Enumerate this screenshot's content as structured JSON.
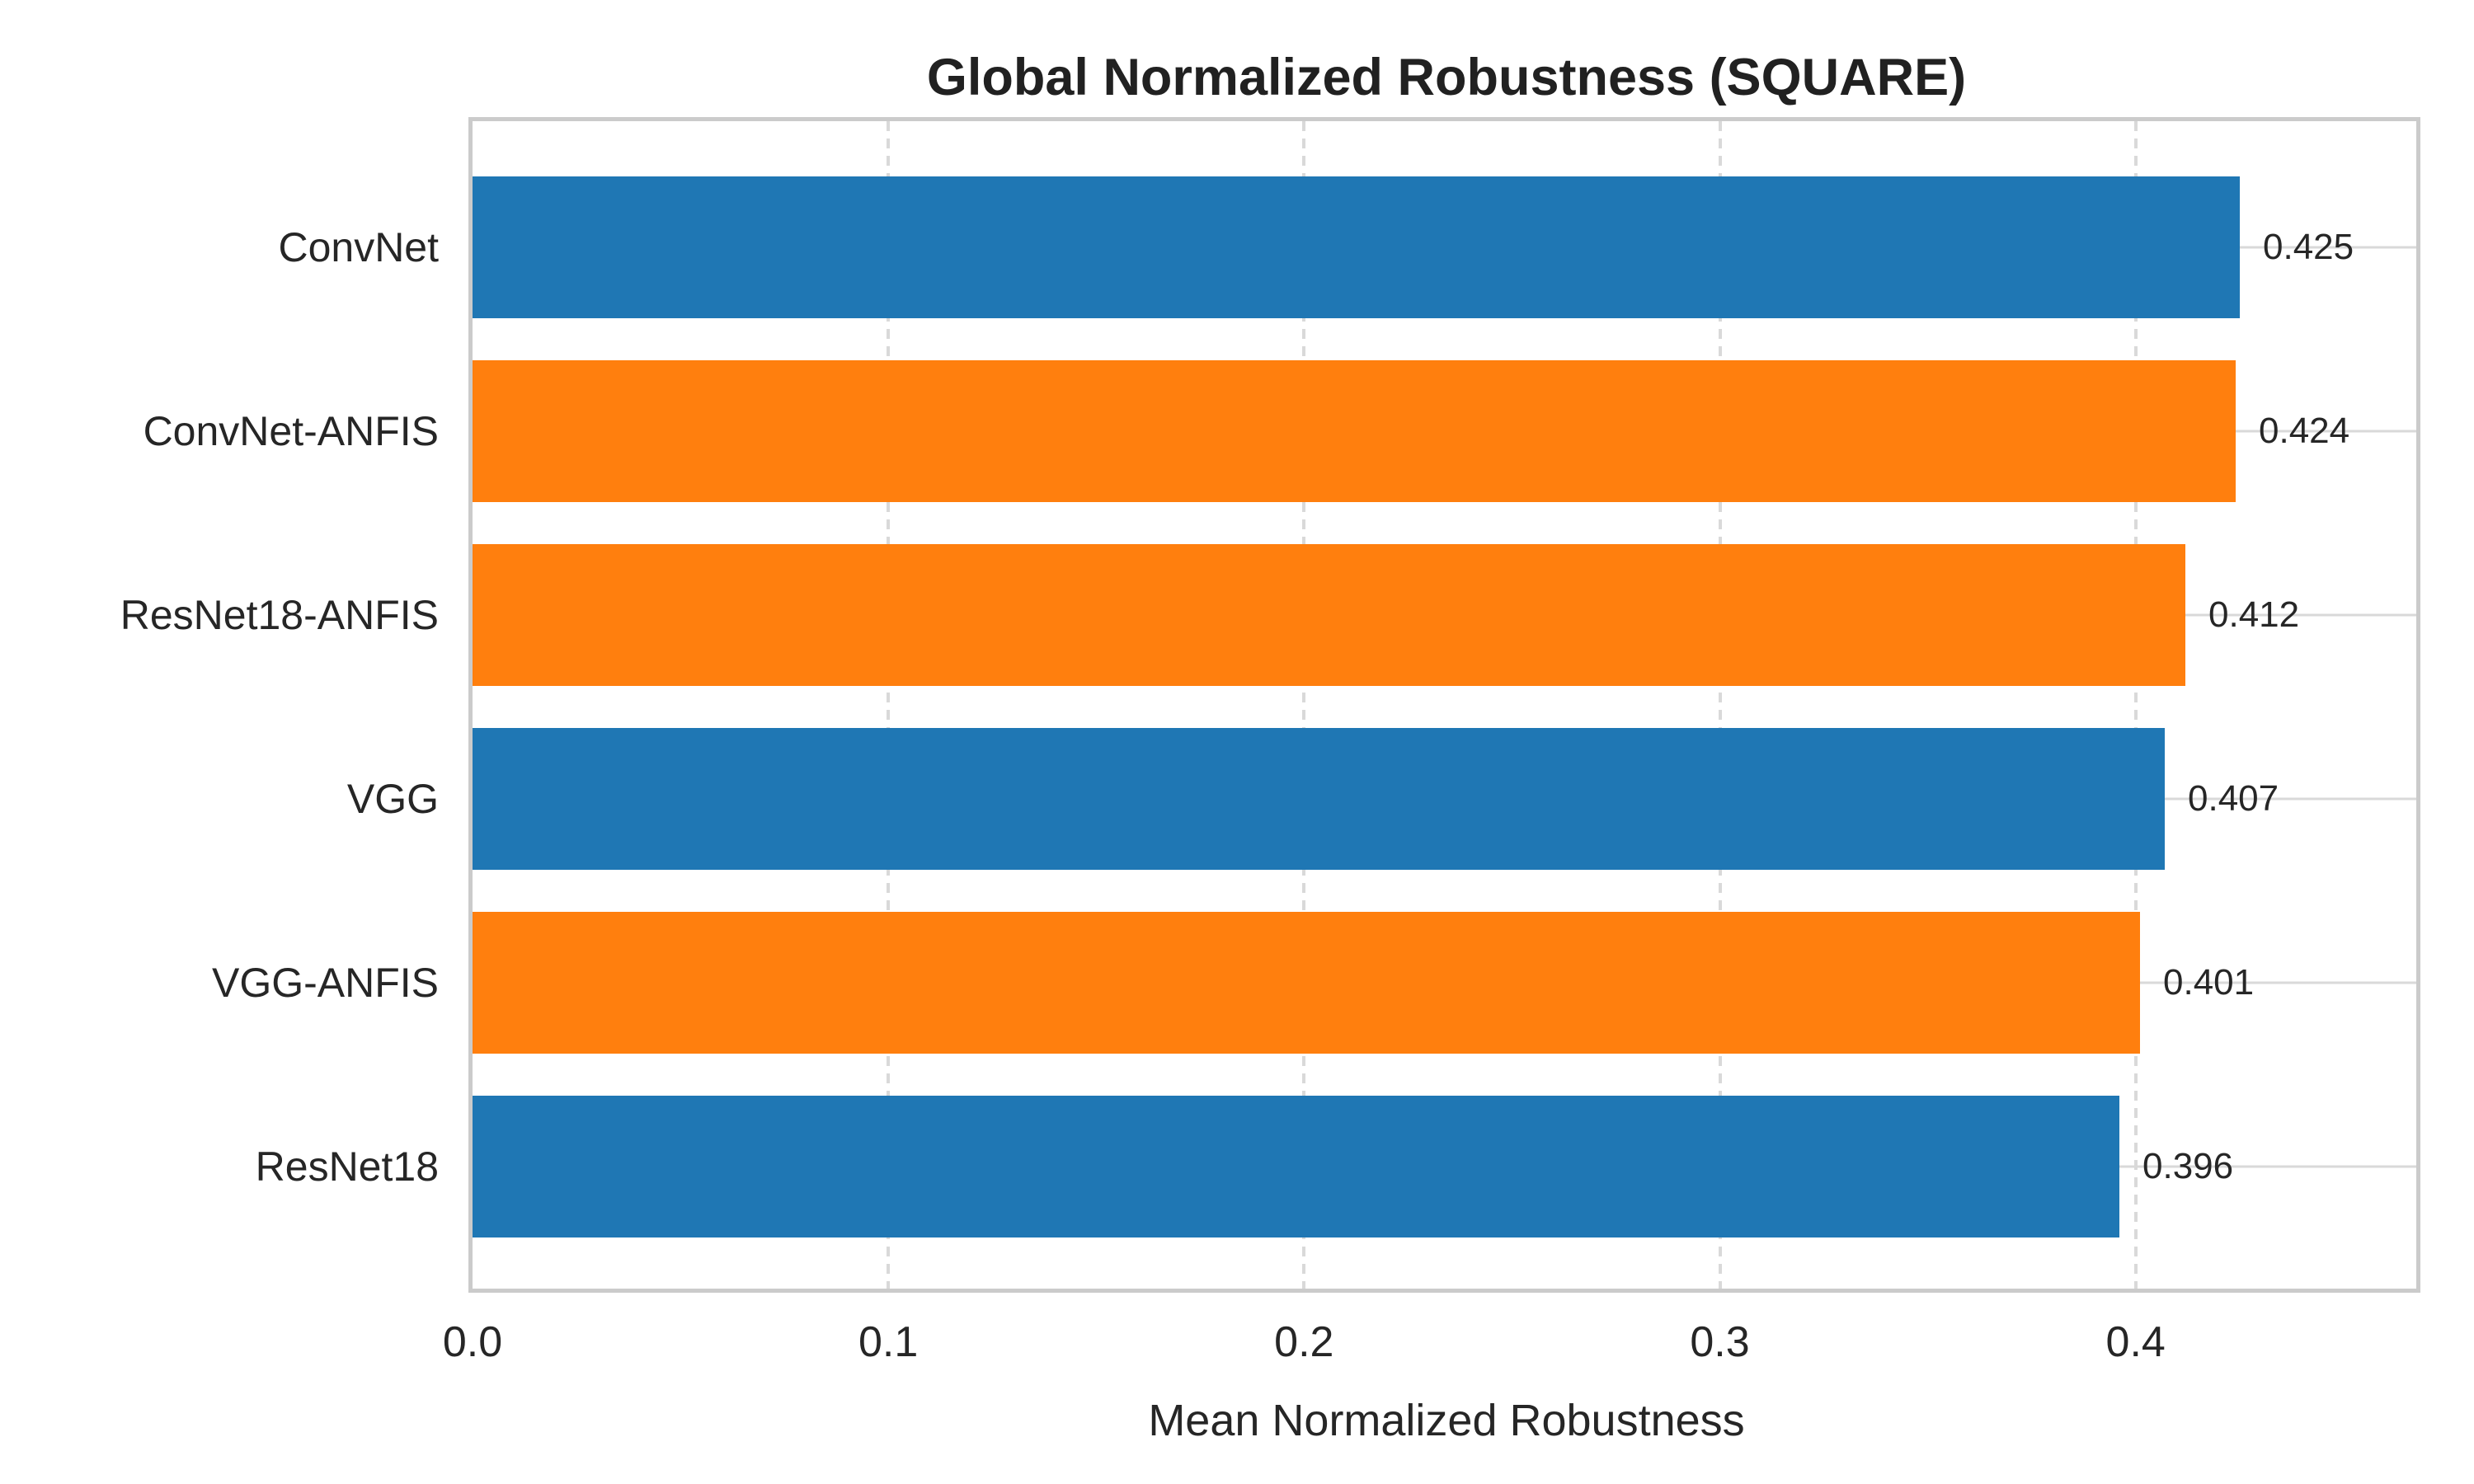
{
  "title": "Global Normalized Robustness (SQUARE)",
  "chart_data": {
    "type": "bar",
    "orientation": "horizontal",
    "title": "Global Normalized Robustness (SQUARE)",
    "xlabel": "Mean Normalized Robustness",
    "ylabel": "",
    "categories": [
      "ConvNet",
      "ConvNet-ANFIS",
      "ResNet18-ANFIS",
      "VGG",
      "VGG-ANFIS",
      "ResNet18"
    ],
    "values": [
      0.425,
      0.424,
      0.412,
      0.407,
      0.401,
      0.396
    ],
    "value_labels": [
      "0.425",
      "0.424",
      "0.412",
      "0.407",
      "0.401",
      "0.396"
    ],
    "bar_colors": [
      "#1f77b4",
      "#ff7f0e",
      "#ff7f0e",
      "#1f77b4",
      "#ff7f0e",
      "#1f77b4"
    ],
    "x_ticks": [
      "0.0",
      "0.1",
      "0.2",
      "0.3",
      "0.4"
    ],
    "x_tick_values": [
      0.0,
      0.1,
      0.2,
      0.3,
      0.4
    ],
    "xlim": [
      0,
      0.4675
    ],
    "grid": "x-gridlines dashed, y-gridlines solid, both light gray",
    "legend": "none",
    "colors": {
      "blue_bar": "#1f77b4",
      "orange_bar": "#ff7f0e",
      "gridline": "#d9d9d9",
      "spine": "#cbcbcb",
      "text": "#262626",
      "background": "#ffffff"
    }
  }
}
